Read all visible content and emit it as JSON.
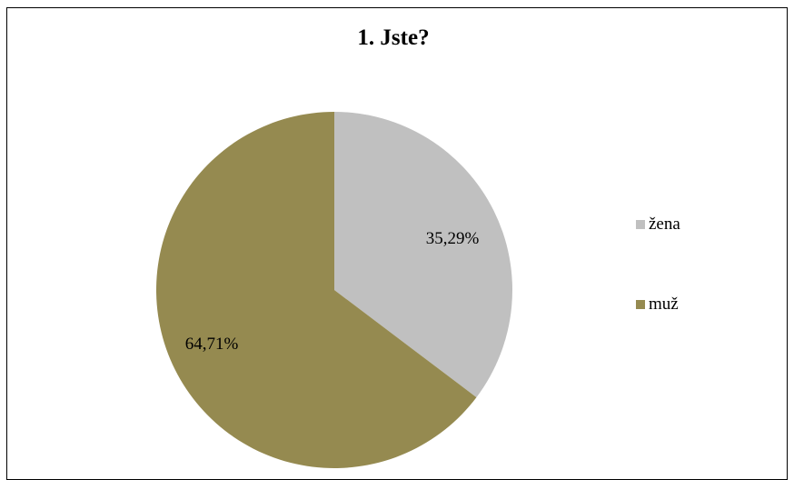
{
  "chart_data": {
    "type": "pie",
    "title": "1. Jste?",
    "categories": [
      "žena",
      "muž"
    ],
    "values": [
      35.29,
      64.71
    ],
    "labels": [
      "35,29%",
      "64,71%"
    ],
    "colors": [
      "#c0c0c0",
      "#958a50"
    ],
    "legend_position": "right"
  }
}
